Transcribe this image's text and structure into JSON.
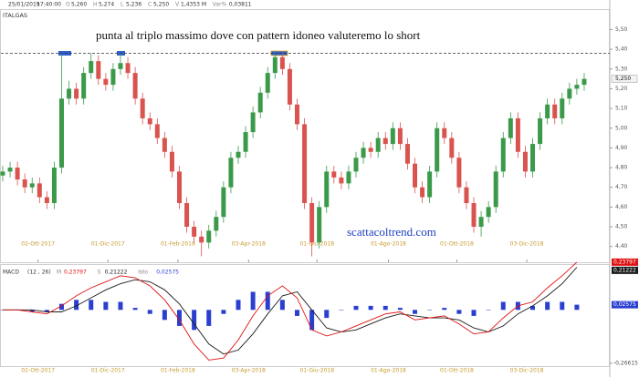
{
  "chart_data": [
    {
      "type": "candlestick",
      "title": "ITALGAS",
      "date": "25/01/2019",
      "time": "17:40:00",
      "readout": [
        [
          "O",
          "5,260"
        ],
        [
          "H",
          "5,274"
        ],
        [
          "L",
          "5,236"
        ],
        [
          "C",
          "5,250"
        ],
        [
          "V",
          "1,4353 M"
        ],
        [
          "Var%",
          "0,03811"
        ]
      ],
      "annotation": "punta al triplo massimo dove con pattern idoneo valuteremo lo short",
      "watermark": "scattacoltrend.com",
      "up_color": "#3a9a4a",
      "down_color": "#d9534f",
      "open": [
        4.76,
        4.78,
        4.8,
        4.74,
        4.7,
        4.72,
        4.65,
        4.62,
        4.8,
        5.15,
        5.2,
        5.15,
        5.28,
        5.34,
        5.25,
        5.22,
        5.3,
        5.33,
        5.28,
        5.15,
        5.05,
        5.02,
        4.95,
        4.88,
        4.78,
        4.62,
        4.5,
        4.45,
        4.42,
        4.48,
        4.55,
        4.7,
        4.85,
        4.88,
        4.98,
        5.08,
        5.18,
        5.28,
        5.36,
        5.3,
        5.12,
        5.02,
        4.62,
        4.42,
        4.6,
        4.78,
        4.75,
        4.72,
        4.78,
        4.85,
        4.9,
        4.88,
        4.95,
        4.92,
        5.0,
        4.92,
        4.82,
        4.7,
        4.65,
        4.78,
        5.0,
        4.95,
        4.85,
        4.7,
        4.62,
        4.5,
        4.55,
        4.6,
        4.78,
        4.95,
        5.05,
        4.88,
        4.78,
        4.92,
        5.05,
        5.12,
        5.05,
        5.15,
        5.2,
        5.22
      ],
      "high": [
        4.81,
        4.83,
        4.83,
        4.77,
        4.75,
        4.75,
        4.68,
        4.83,
        5.38,
        5.24,
        5.23,
        5.31,
        5.38,
        5.37,
        5.28,
        5.33,
        5.38,
        5.36,
        5.31,
        5.18,
        5.08,
        5.05,
        4.98,
        4.91,
        4.81,
        4.65,
        4.53,
        4.48,
        4.51,
        4.58,
        4.73,
        4.88,
        4.91,
        5.01,
        5.11,
        5.21,
        5.31,
        5.38,
        5.38,
        5.33,
        5.15,
        5.05,
        4.65,
        4.63,
        4.81,
        4.81,
        4.78,
        4.81,
        4.88,
        4.93,
        4.93,
        4.98,
        4.98,
        5.03,
        5.03,
        4.95,
        4.85,
        4.73,
        4.81,
        5.03,
        5.03,
        4.98,
        4.88,
        4.73,
        4.65,
        4.58,
        4.63,
        4.81,
        4.98,
        5.08,
        5.08,
        4.91,
        4.95,
        5.08,
        5.15,
        5.15,
        5.18,
        5.23,
        5.25,
        5.28
      ],
      "low": [
        4.73,
        4.75,
        4.71,
        4.67,
        4.67,
        4.62,
        4.59,
        4.59,
        4.77,
        5.12,
        5.12,
        5.12,
        5.25,
        5.22,
        5.19,
        5.19,
        5.27,
        5.25,
        5.12,
        5.02,
        4.99,
        4.92,
        4.85,
        4.75,
        4.59,
        4.47,
        4.42,
        4.35,
        4.39,
        4.45,
        4.52,
        4.67,
        4.82,
        4.85,
        4.95,
        5.05,
        5.15,
        5.25,
        5.27,
        5.09,
        4.99,
        4.59,
        4.35,
        4.39,
        4.57,
        4.72,
        4.69,
        4.69,
        4.75,
        4.82,
        4.85,
        4.85,
        4.89,
        4.89,
        4.89,
        4.79,
        4.67,
        4.62,
        4.62,
        4.75,
        4.92,
        4.82,
        4.67,
        4.59,
        4.47,
        4.45,
        4.52,
        4.57,
        4.75,
        4.92,
        4.85,
        4.75,
        4.75,
        4.89,
        5.02,
        5.02,
        5.02,
        5.12,
        5.17,
        5.19
      ],
      "close": [
        4.78,
        4.8,
        4.74,
        4.7,
        4.72,
        4.65,
        4.62,
        4.8,
        5.15,
        5.2,
        5.15,
        5.28,
        5.34,
        5.25,
        5.22,
        5.3,
        5.33,
        5.28,
        5.15,
        5.05,
        5.02,
        4.95,
        4.88,
        4.78,
        4.62,
        4.5,
        4.45,
        4.42,
        4.48,
        4.55,
        4.7,
        4.85,
        4.88,
        4.98,
        5.08,
        5.18,
        5.28,
        5.36,
        5.3,
        5.12,
        5.02,
        4.62,
        4.42,
        4.6,
        4.78,
        4.75,
        4.72,
        4.78,
        4.85,
        4.9,
        4.88,
        4.95,
        4.92,
        5.0,
        4.92,
        4.82,
        4.7,
        4.65,
        4.78,
        5.0,
        4.95,
        4.85,
        4.7,
        4.62,
        4.5,
        4.55,
        4.6,
        4.78,
        4.95,
        5.05,
        4.88,
        4.78,
        4.92,
        5.05,
        5.12,
        5.05,
        5.15,
        5.2,
        5.22,
        5.25
      ],
      "last_label": "5,250",
      "resistance": 5.38,
      "xlim": [
        -0.37,
        79.5
      ],
      "xticks": [
        {
          "value": 4.8,
          "label": "02-Ott-2017"
        },
        {
          "value": 14.3,
          "label": "01-Dic-2017"
        },
        {
          "value": 23.8,
          "label": "01-Feb-2018"
        },
        {
          "value": 33.4,
          "label": "03-Apr-2018"
        },
        {
          "value": 42.7,
          "label": "01-Giu-2018"
        },
        {
          "value": 52.4,
          "label": "01-Ago-2018"
        },
        {
          "value": 61.7,
          "label": "01-Ott-2018"
        },
        {
          "value": 71.2,
          "label": "03-Dic-2018"
        }
      ],
      "ylim": [
        4.32,
        5.65
      ],
      "yticks": [
        {
          "value": 4.4,
          "label": "4,40"
        },
        {
          "value": 4.5,
          "label": "4,50"
        },
        {
          "value": 4.6,
          "label": "4,60"
        },
        {
          "value": 4.7,
          "label": "4,70"
        },
        {
          "value": 4.8,
          "label": "4,80"
        },
        {
          "value": 4.9,
          "label": "4,90"
        },
        {
          "value": 5.0,
          "label": "5,00"
        },
        {
          "value": 5.1,
          "label": "5,10"
        },
        {
          "value": 5.2,
          "label": "5,20"
        },
        {
          "value": 5.3,
          "label": "5,30"
        },
        {
          "value": 5.4,
          "label": "5,40"
        },
        {
          "value": 5.5,
          "label": "5,50"
        }
      ]
    },
    {
      "type": "macd",
      "title": "MACD",
      "subtitle": "(12 , 26)",
      "x": [
        0,
        2,
        4,
        6,
        8,
        10,
        12,
        14,
        16,
        18,
        20,
        22,
        24,
        26,
        28,
        30,
        32,
        34,
        36,
        38,
        40,
        42,
        44,
        46,
        48,
        50,
        52,
        54,
        56,
        58,
        60,
        62,
        64,
        66,
        68,
        70,
        72,
        74,
        76,
        78
      ],
      "series": [
        {
          "name": "M",
          "color": "#e01010",
          "last_label": "0,23797",
          "values": [
            0.0,
            0.0,
            -0.01,
            -0.02,
            0.02,
            0.07,
            0.11,
            0.14,
            0.17,
            0.16,
            0.12,
            0.05,
            -0.05,
            -0.17,
            -0.25,
            -0.24,
            -0.15,
            -0.03,
            0.07,
            0.12,
            0.06,
            -0.1,
            -0.13,
            -0.11,
            -0.08,
            -0.05,
            -0.02,
            -0.01,
            -0.05,
            -0.04,
            -0.03,
            -0.07,
            -0.12,
            -0.11,
            -0.04,
            0.02,
            0.04,
            0.11,
            0.17,
            0.23797
          ]
        },
        {
          "name": "S",
          "color": "#1a1a1a",
          "last_label": "0,21222",
          "values": [
            0.0,
            0.0,
            0.0,
            -0.01,
            -0.01,
            0.02,
            0.06,
            0.1,
            0.13,
            0.15,
            0.14,
            0.1,
            0.03,
            -0.07,
            -0.17,
            -0.22,
            -0.2,
            -0.12,
            -0.02,
            0.07,
            0.09,
            0.0,
            -0.09,
            -0.11,
            -0.1,
            -0.07,
            -0.04,
            -0.02,
            -0.03,
            -0.04,
            -0.04,
            -0.05,
            -0.09,
            -0.11,
            -0.08,
            -0.02,
            0.02,
            0.07,
            0.13,
            0.21222
          ]
        },
        {
          "name": "Isto",
          "color": "#2a3fd0",
          "last_label": "0,02575",
          "values": [
            0,
            0,
            -0.01,
            -0.01,
            0.03,
            0.05,
            0.05,
            0.04,
            0.04,
            0.01,
            -0.02,
            -0.05,
            -0.08,
            -0.1,
            -0.08,
            -0.02,
            0.05,
            0.09,
            0.09,
            0.05,
            -0.03,
            -0.1,
            -0.04,
            0.0,
            0.02,
            0.02,
            0.02,
            0.01,
            -0.02,
            0.0,
            0.01,
            -0.02,
            -0.03,
            0.0,
            0.04,
            0.04,
            0.02,
            0.04,
            0.04,
            0.02575
          ]
        }
      ],
      "xlim": [
        -0.37,
        79.5
      ],
      "ylim": [
        -0.28,
        0.26
      ],
      "yticks": [
        {
          "value": -0.26615,
          "label": "-0,26615"
        }
      ]
    }
  ]
}
